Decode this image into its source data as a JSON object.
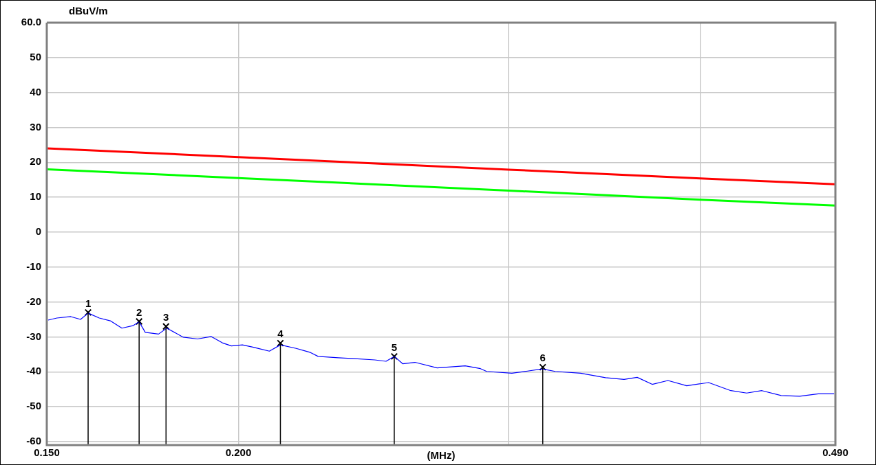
{
  "chart_data": {
    "type": "line",
    "xlabel": "(MHz)",
    "ylabel": "dBuV/m",
    "log": "x",
    "xlim": [
      0.15,
      0.49
    ],
    "xticks": [
      {
        "value": 0.15,
        "label": "0.150"
      },
      {
        "value": 0.2,
        "label": "0.200"
      },
      {
        "value": 0.3,
        "label": null
      },
      {
        "value": 0.4,
        "label": null
      },
      {
        "value": 0.49,
        "label": "0.490"
      }
    ],
    "ylim": [
      -61,
      60
    ],
    "yticks": [
      -60,
      -50,
      -40,
      -30,
      -20,
      -10,
      0,
      10,
      20,
      30,
      40,
      50,
      {
        "value": 60,
        "label": "60.0"
      }
    ],
    "grid": true,
    "legend": false,
    "marker": "none",
    "line_style": "solid",
    "series": [
      {
        "color": "#ff0000",
        "x": [
          0.15,
          0.2,
          0.3,
          0.4,
          0.49
        ],
        "values": [
          24,
          21.5,
          17.9,
          15.4,
          13.7
        ]
      },
      {
        "color": "#00ff00",
        "x": [
          0.15,
          0.2,
          0.3,
          0.4,
          0.49
        ],
        "values": [
          18,
          15.5,
          11.9,
          9.3,
          7.6
        ]
      },
      {
        "color": "#0000ff",
        "x": [
          0.1503,
          0.1523,
          0.1555,
          0.1578,
          0.1596,
          0.1623,
          0.165,
          0.1679,
          0.1707,
          0.1723,
          0.1739,
          0.1774,
          0.1796,
          0.1841,
          0.1881,
          0.192,
          0.1952,
          0.1979,
          0.2012,
          0.2046,
          0.2095,
          0.213,
          0.2181,
          0.2226,
          0.2254,
          0.2323,
          0.2371,
          0.2454,
          0.2496,
          0.2527,
          0.2559,
          0.2607,
          0.2695,
          0.2811,
          0.2876,
          0.2903,
          0.3015,
          0.3087,
          0.3155,
          0.3218,
          0.3343,
          0.347,
          0.3568,
          0.3639,
          0.3722,
          0.3811,
          0.392,
          0.4051,
          0.4188,
          0.4289,
          0.4388,
          0.4517,
          0.4644,
          0.4776,
          0.4891
        ],
        "values": [
          -25.2,
          -24.6,
          -24.2,
          -25.0,
          -23.2,
          -24.6,
          -25.4,
          -27.5,
          -26.8,
          -25.7,
          -28.7,
          -29.2,
          -27.5,
          -30.1,
          -30.6,
          -29.9,
          -31.7,
          -32.6,
          -32.3,
          -33.0,
          -34.1,
          -32.3,
          -33.3,
          -34.4,
          -35.6,
          -36.0,
          -36.2,
          -36.6,
          -37.0,
          -35.6,
          -37.7,
          -37.3,
          -38.9,
          -38.3,
          -39.1,
          -39.9,
          -40.4,
          -39.8,
          -39.2,
          -39.9,
          -40.4,
          -41.7,
          -42.2,
          -41.6,
          -43.6,
          -42.5,
          -44.0,
          -43.1,
          -45.4,
          -46.1,
          -45.4,
          -46.8,
          -47.0,
          -46.3,
          -46.3
        ]
      },
      {
        "type": "lollipop",
        "color": "#000000",
        "marker": "cross",
        "x": [
          0.1596,
          0.1723,
          0.1794,
          0.213,
          0.2527,
          0.3158
        ],
        "values": [
          -23.0,
          -25.6,
          -27.0,
          -31.8,
          -35.6,
          -38.7
        ]
      }
    ],
    "annotations": [
      {
        "text": "1",
        "x": 0.1596,
        "y": -23.0
      },
      {
        "text": "2",
        "x": 0.1723,
        "y": -25.6
      },
      {
        "text": "3",
        "x": 0.1794,
        "y": -27.0
      },
      {
        "text": "4",
        "x": 0.213,
        "y": -31.8
      },
      {
        "text": "5",
        "x": 0.2527,
        "y": -35.6
      },
      {
        "text": "6",
        "x": 0.3158,
        "y": -38.7
      }
    ]
  }
}
